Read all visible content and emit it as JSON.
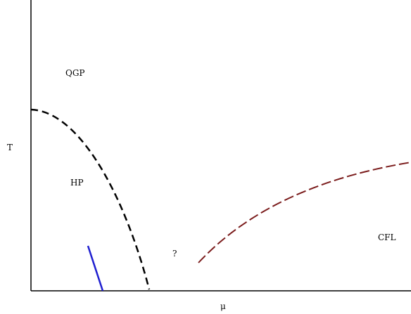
{
  "axes": {
    "x_label": "μ",
    "y_label": "T"
  },
  "regions": {
    "qgp": "QGP",
    "hp": "HP",
    "cfl": "CFL",
    "unknown": "?"
  },
  "curves": {
    "deconfinement_boundary": {
      "style": "dashed",
      "color": "#000000"
    },
    "cfl_boundary": {
      "style": "dashed",
      "color": "#7b1c1c"
    },
    "short_boundary": {
      "style": "solid",
      "color": "#1f1fd0"
    }
  }
}
